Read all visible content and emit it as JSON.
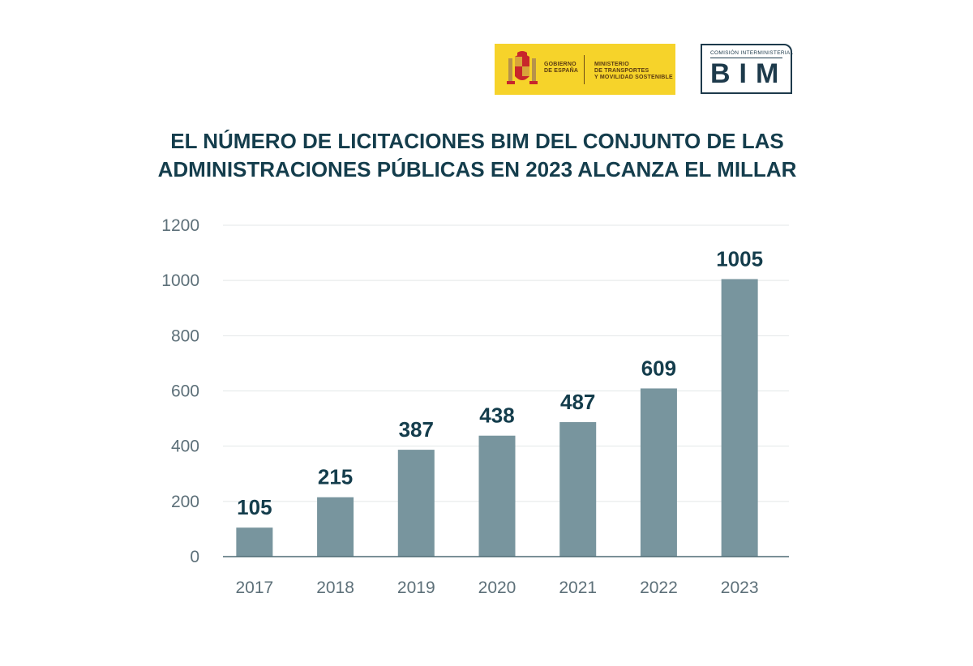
{
  "logos": {
    "government": {
      "line1": "GOBIERNO\nDE ESPAÑA",
      "line2": "MINISTERIO\nDE TRANSPORTES\nY MOVILIDAD SOSTENIBLE",
      "color": "#f6d32a"
    },
    "bim": {
      "small": "COMISIÓN INTERMINISTERIAL",
      "big": "BIM",
      "color": "#1d3a4b"
    }
  },
  "title_lines": [
    "EL NÚMERO DE LICITACIONES BIM DEL CONJUNTO DE LAS",
    "ADMINISTRACIONES PÚBLICAS EN 2023 ALCANZA EL MILLAR"
  ],
  "colors": {
    "bar": "#78959e",
    "title": "#143d4c",
    "grid": "#e3e7e8",
    "axis": "#4f6b75"
  },
  "chart_data": {
    "type": "bar",
    "categories": [
      "2017",
      "2018",
      "2019",
      "2020",
      "2021",
      "2022",
      "2023"
    ],
    "values": [
      105,
      215,
      387,
      438,
      487,
      609,
      1005
    ],
    "title": "EL NÚMERO DE LICITACIONES BIM DEL CONJUNTO DE LAS ADMINISTRACIONES PÚBLICAS EN 2023 ALCANZA EL MILLAR",
    "xlabel": "",
    "ylabel": "",
    "ylim": [
      0,
      1200
    ],
    "yticks": [
      0,
      200,
      400,
      600,
      800,
      1000,
      1200
    ],
    "grid": true,
    "data_labels": true
  }
}
